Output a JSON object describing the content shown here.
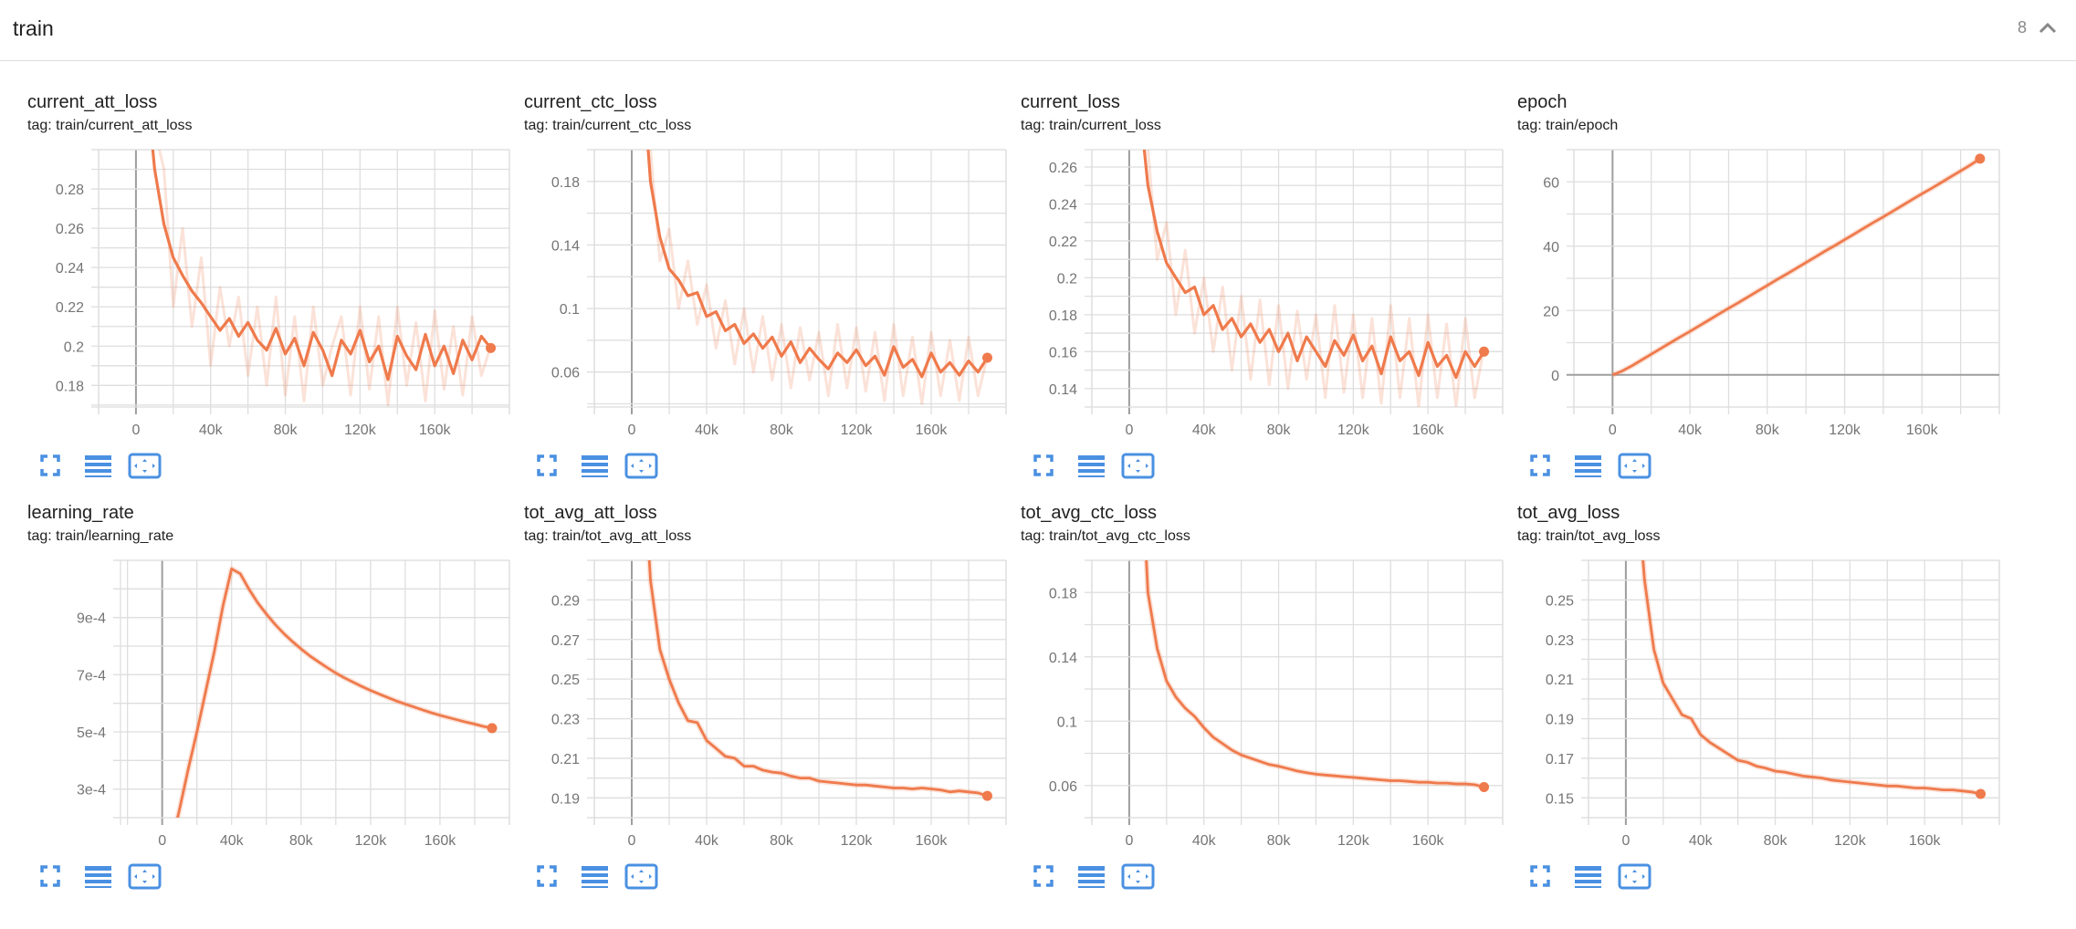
{
  "header": {
    "title": "train",
    "count": "8",
    "collapse_icon": "chevron-up-icon"
  },
  "colors": {
    "series": "#ef7a4c",
    "accent_icons": "#4a90e2",
    "grid": "#dedede",
    "zero_line": "#9e9e9e"
  },
  "card_icons": [
    "fullscreen-icon",
    "data-table-icon",
    "fit-domain-icon"
  ],
  "chart_data": [
    {
      "type": "line",
      "title": "current_att_loss",
      "tag": "tag: train/current_att_loss",
      "xlim": [
        -20000,
        200000
      ],
      "ylim": [
        0.169,
        0.3
      ],
      "grid": true,
      "x_grid_step": 20000,
      "y_grid_step": 0.01,
      "xticks": [
        0,
        40000,
        80000,
        120000,
        160000
      ],
      "xtick_labels": [
        "0",
        "40k",
        "80k",
        "120k",
        "160k"
      ],
      "yticks": [
        0.18,
        0.2,
        0.22,
        0.24,
        0.26,
        0.28
      ],
      "ytick_labels": [
        "0.18",
        "0.2",
        "0.22",
        "0.24",
        "0.26",
        "0.28"
      ],
      "x": [
        0,
        5000,
        10000,
        15000,
        20000,
        25000,
        30000,
        35000,
        40000,
        45000,
        50000,
        55000,
        60000,
        65000,
        70000,
        75000,
        80000,
        85000,
        90000,
        95000,
        100000,
        105000,
        110000,
        115000,
        120000,
        125000,
        130000,
        135000,
        140000,
        145000,
        150000,
        155000,
        160000,
        165000,
        170000,
        175000,
        180000,
        185000,
        190000
      ],
      "smoothed": [
        0.4,
        0.34,
        0.29,
        0.262,
        0.245,
        0.236,
        0.228,
        0.222,
        0.215,
        0.208,
        0.214,
        0.205,
        0.212,
        0.203,
        0.198,
        0.209,
        0.196,
        0.204,
        0.19,
        0.207,
        0.198,
        0.185,
        0.203,
        0.196,
        0.208,
        0.192,
        0.2,
        0.183,
        0.205,
        0.195,
        0.188,
        0.206,
        0.19,
        0.2,
        0.186,
        0.203,
        0.193,
        0.205,
        0.199
      ],
      "raw": [
        0.4,
        0.36,
        0.31,
        0.29,
        0.22,
        0.26,
        0.21,
        0.245,
        0.19,
        0.23,
        0.2,
        0.225,
        0.185,
        0.22,
        0.18,
        0.225,
        0.175,
        0.215,
        0.172,
        0.22,
        0.18,
        0.2,
        0.215,
        0.175,
        0.22,
        0.178,
        0.215,
        0.17,
        0.22,
        0.18,
        0.212,
        0.172,
        0.218,
        0.178,
        0.21,
        0.175,
        0.215,
        0.185,
        0.2
      ]
    },
    {
      "type": "line",
      "title": "current_ctc_loss",
      "tag": "tag: train/current_ctc_loss",
      "xlim": [
        -20000,
        200000
      ],
      "ylim": [
        0.038,
        0.2
      ],
      "grid": true,
      "x_grid_step": 20000,
      "y_grid_step": 0.02,
      "xticks": [
        0,
        40000,
        80000,
        120000,
        160000
      ],
      "xtick_labels": [
        "0",
        "40k",
        "80k",
        "120k",
        "160k"
      ],
      "yticks": [
        0.06,
        0.1,
        0.14,
        0.18
      ],
      "ytick_labels": [
        "0.06",
        "0.1",
        "0.14",
        "0.18"
      ],
      "x": [
        0,
        5000,
        10000,
        15000,
        20000,
        25000,
        30000,
        35000,
        40000,
        45000,
        50000,
        55000,
        60000,
        65000,
        70000,
        75000,
        80000,
        85000,
        90000,
        95000,
        100000,
        105000,
        110000,
        115000,
        120000,
        125000,
        130000,
        135000,
        140000,
        145000,
        150000,
        155000,
        160000,
        165000,
        170000,
        175000,
        180000,
        185000,
        190000
      ],
      "smoothed": [
        0.35,
        0.26,
        0.18,
        0.145,
        0.125,
        0.118,
        0.108,
        0.11,
        0.095,
        0.098,
        0.086,
        0.09,
        0.078,
        0.084,
        0.075,
        0.082,
        0.07,
        0.079,
        0.066,
        0.075,
        0.068,
        0.062,
        0.072,
        0.066,
        0.074,
        0.064,
        0.07,
        0.058,
        0.076,
        0.063,
        0.068,
        0.057,
        0.072,
        0.06,
        0.066,
        0.058,
        0.067,
        0.06,
        0.069
      ],
      "raw": [
        0.35,
        0.28,
        0.2,
        0.13,
        0.15,
        0.1,
        0.13,
        0.09,
        0.115,
        0.075,
        0.105,
        0.065,
        0.1,
        0.06,
        0.095,
        0.055,
        0.09,
        0.05,
        0.088,
        0.055,
        0.085,
        0.045,
        0.09,
        0.05,
        0.088,
        0.048,
        0.085,
        0.042,
        0.09,
        0.045,
        0.082,
        0.04,
        0.085,
        0.045,
        0.08,
        0.042,
        0.082,
        0.045,
        0.07
      ]
    },
    {
      "type": "line",
      "title": "current_loss",
      "tag": "tag: train/current_loss",
      "xlim": [
        -20000,
        200000
      ],
      "ylim": [
        0.13,
        0.2694
      ],
      "grid": true,
      "x_grid_step": 20000,
      "y_grid_step": 0.01,
      "xticks": [
        0,
        40000,
        80000,
        120000,
        160000
      ],
      "xtick_labels": [
        "0",
        "40k",
        "80k",
        "120k",
        "160k"
      ],
      "yticks": [
        0.14,
        0.16,
        0.18,
        0.2,
        0.22,
        0.24,
        0.26
      ],
      "ytick_labels": [
        "0.14",
        "0.16",
        "0.18",
        "0.2",
        "0.22",
        "0.24",
        "0.26"
      ],
      "x": [
        0,
        5000,
        10000,
        15000,
        20000,
        25000,
        30000,
        35000,
        40000,
        45000,
        50000,
        55000,
        60000,
        65000,
        70000,
        75000,
        80000,
        85000,
        90000,
        95000,
        100000,
        105000,
        110000,
        115000,
        120000,
        125000,
        130000,
        135000,
        140000,
        145000,
        150000,
        155000,
        160000,
        165000,
        170000,
        175000,
        180000,
        185000,
        190000
      ],
      "smoothed": [
        0.38,
        0.3,
        0.25,
        0.225,
        0.208,
        0.2,
        0.192,
        0.195,
        0.18,
        0.185,
        0.172,
        0.178,
        0.168,
        0.175,
        0.165,
        0.172,
        0.16,
        0.17,
        0.155,
        0.168,
        0.16,
        0.152,
        0.166,
        0.158,
        0.169,
        0.155,
        0.163,
        0.148,
        0.168,
        0.155,
        0.16,
        0.147,
        0.165,
        0.152,
        0.158,
        0.146,
        0.16,
        0.152,
        0.16
      ],
      "raw": [
        0.38,
        0.31,
        0.27,
        0.21,
        0.23,
        0.18,
        0.215,
        0.17,
        0.2,
        0.16,
        0.195,
        0.15,
        0.19,
        0.145,
        0.188,
        0.142,
        0.185,
        0.14,
        0.182,
        0.145,
        0.18,
        0.135,
        0.185,
        0.138,
        0.18,
        0.135,
        0.178,
        0.132,
        0.185,
        0.135,
        0.178,
        0.13,
        0.18,
        0.135,
        0.175,
        0.13,
        0.178,
        0.135,
        0.162
      ]
    },
    {
      "type": "line",
      "title": "epoch",
      "tag": "tag: train/epoch",
      "xlim": [
        -20000,
        200000
      ],
      "ylim": [
        -10,
        70
      ],
      "grid": true,
      "x_grid_step": 20000,
      "y_grid_step": 10,
      "xticks": [
        0,
        40000,
        80000,
        120000,
        160000
      ],
      "xtick_labels": [
        "0",
        "40k",
        "80k",
        "120k",
        "160k"
      ],
      "yticks": [
        0,
        20,
        40,
        60
      ],
      "ytick_labels": [
        "0",
        "20",
        "40",
        "60"
      ],
      "x": [
        0,
        5000,
        10000,
        15000,
        20000,
        25000,
        30000,
        35000,
        40000,
        45000,
        50000,
        55000,
        60000,
        65000,
        70000,
        75000,
        80000,
        85000,
        90000,
        95000,
        100000,
        105000,
        110000,
        115000,
        120000,
        125000,
        130000,
        135000,
        140000,
        145000,
        150000,
        155000,
        160000,
        165000,
        170000,
        175000,
        180000,
        185000,
        190000
      ],
      "smoothed": [
        0,
        1.2,
        2.8,
        4.6,
        6.4,
        8.2,
        10.0,
        11.8,
        13.5,
        15.3,
        17.1,
        18.9,
        20.7,
        22.4,
        24.2,
        26.0,
        27.8,
        29.6,
        31.3,
        33.1,
        34.9,
        36.7,
        38.5,
        40.2,
        42.0,
        43.8,
        45.6,
        47.4,
        49.1,
        50.9,
        52.7,
        54.5,
        56.3,
        58.0,
        59.8,
        61.6,
        63.4,
        65.2,
        67.2
      ]
    },
    {
      "type": "line",
      "title": "learning_rate",
      "tag": "tag: train/learning_rate",
      "xlim": [
        -24000,
        200000
      ],
      "ylim": [
        0.0002,
        0.0011
      ],
      "grid": true,
      "x_grid_step": 20000,
      "y_grid_step": 0.0001,
      "xticks": [
        0,
        40000,
        80000,
        120000,
        160000
      ],
      "xtick_labels": [
        "0",
        "40k",
        "80k",
        "120k",
        "160k"
      ],
      "yticks": [
        0.0003,
        0.0005,
        0.0007,
        0.0009
      ],
      "ytick_labels": [
        "3e-4",
        "5e-4",
        "7e-4",
        "9e-4"
      ],
      "x": [
        0,
        5000,
        10000,
        15000,
        20000,
        25000,
        30000,
        35000,
        40000,
        45000,
        50000,
        55000,
        60000,
        65000,
        70000,
        75000,
        80000,
        85000,
        90000,
        95000,
        100000,
        105000,
        110000,
        115000,
        120000,
        125000,
        130000,
        135000,
        140000,
        145000,
        150000,
        155000,
        160000,
        165000,
        170000,
        175000,
        180000,
        185000,
        190000
      ],
      "smoothed": [
        0,
        0.0001,
        0.00023,
        0.00037,
        0.0005,
        0.00064,
        0.00078,
        0.00094,
        0.00107,
        0.001053,
        0.000999,
        0.000952,
        0.000912,
        0.000876,
        0.000844,
        0.000816,
        0.00079,
        0.000766,
        0.000745,
        0.000725,
        0.000706,
        0.000689,
        0.000674,
        0.000659,
        0.000645,
        0.000632,
        0.00062,
        0.000608,
        0.000597,
        0.000587,
        0.000577,
        0.000567,
        0.000558,
        0.00055,
        0.000542,
        0.000534,
        0.000527,
        0.000519,
        0.000513
      ]
    },
    {
      "type": "line",
      "title": "tot_avg_att_loss",
      "tag": "tag: train/tot_avg_att_loss",
      "xlim": [
        -20000,
        200000
      ],
      "ylim": [
        0.18,
        0.31
      ],
      "grid": true,
      "x_grid_step": 20000,
      "y_grid_step": 0.01,
      "xticks": [
        0,
        40000,
        80000,
        120000,
        160000
      ],
      "xtick_labels": [
        "0",
        "40k",
        "80k",
        "120k",
        "160k"
      ],
      "yticks": [
        0.19,
        0.21,
        0.23,
        0.25,
        0.27,
        0.29
      ],
      "ytick_labels": [
        "0.19",
        "0.21",
        "0.23",
        "0.25",
        "0.27",
        "0.29"
      ],
      "x": [
        0,
        5000,
        10000,
        15000,
        20000,
        25000,
        30000,
        35000,
        40000,
        45000,
        50000,
        55000,
        60000,
        65000,
        70000,
        75000,
        80000,
        85000,
        90000,
        95000,
        100000,
        105000,
        110000,
        115000,
        120000,
        125000,
        130000,
        135000,
        140000,
        145000,
        150000,
        155000,
        160000,
        165000,
        170000,
        175000,
        180000,
        185000,
        190000
      ],
      "smoothed": [
        0.45,
        0.38,
        0.3,
        0.265,
        0.25,
        0.238,
        0.229,
        0.228,
        0.219,
        0.215,
        0.211,
        0.21,
        0.206,
        0.206,
        0.204,
        0.203,
        0.2025,
        0.201,
        0.2,
        0.2,
        0.1985,
        0.198,
        0.1975,
        0.197,
        0.1965,
        0.1965,
        0.196,
        0.1955,
        0.195,
        0.195,
        0.1945,
        0.195,
        0.1945,
        0.194,
        0.193,
        0.1935,
        0.193,
        0.1925,
        0.191
      ]
    },
    {
      "type": "line",
      "title": "tot_avg_ctc_loss",
      "tag": "tag: train/tot_avg_ctc_loss",
      "xlim": [
        -20000,
        200000
      ],
      "ylim": [
        0.04,
        0.2
      ],
      "grid": true,
      "x_grid_step": 20000,
      "y_grid_step": 0.02,
      "xticks": [
        0,
        40000,
        80000,
        120000,
        160000
      ],
      "xtick_labels": [
        "0",
        "40k",
        "80k",
        "120k",
        "160k"
      ],
      "yticks": [
        0.06,
        0.1,
        0.14,
        0.18
      ],
      "ytick_labels": [
        "0.06",
        "0.1",
        "0.14",
        "0.18"
      ],
      "x": [
        0,
        5000,
        10000,
        15000,
        20000,
        25000,
        30000,
        35000,
        40000,
        45000,
        50000,
        55000,
        60000,
        65000,
        70000,
        75000,
        80000,
        85000,
        90000,
        95000,
        100000,
        105000,
        110000,
        115000,
        120000,
        125000,
        130000,
        135000,
        140000,
        145000,
        150000,
        155000,
        160000,
        165000,
        170000,
        175000,
        180000,
        185000,
        190000
      ],
      "smoothed": [
        0.4,
        0.3,
        0.18,
        0.145,
        0.125,
        0.115,
        0.108,
        0.103,
        0.096,
        0.09,
        0.086,
        0.082,
        0.079,
        0.077,
        0.075,
        0.073,
        0.072,
        0.0705,
        0.069,
        0.068,
        0.067,
        0.0665,
        0.066,
        0.0655,
        0.065,
        0.0645,
        0.064,
        0.0635,
        0.063,
        0.063,
        0.0625,
        0.062,
        0.062,
        0.0615,
        0.0615,
        0.061,
        0.061,
        0.0605,
        0.059
      ]
    },
    {
      "type": "line",
      "title": "tot_avg_loss",
      "tag": "tag: train/tot_avg_loss",
      "xlim": [
        -20000,
        200000
      ],
      "ylim": [
        0.14,
        0.27
      ],
      "grid": true,
      "x_grid_step": 20000,
      "y_grid_step": 0.01,
      "xticks": [
        0,
        40000,
        80000,
        120000,
        160000
      ],
      "xtick_labels": [
        "0",
        "40k",
        "80k",
        "120k",
        "160k"
      ],
      "yticks": [
        0.15,
        0.17,
        0.19,
        0.21,
        0.23,
        0.25
      ],
      "ytick_labels": [
        "0.15",
        "0.17",
        "0.19",
        "0.21",
        "0.23",
        "0.25"
      ],
      "x": [
        0,
        5000,
        10000,
        15000,
        20000,
        25000,
        30000,
        35000,
        40000,
        45000,
        50000,
        55000,
        60000,
        65000,
        70000,
        75000,
        80000,
        85000,
        90000,
        95000,
        100000,
        105000,
        110000,
        115000,
        120000,
        125000,
        130000,
        135000,
        140000,
        145000,
        150000,
        155000,
        160000,
        165000,
        170000,
        175000,
        180000,
        185000,
        190000
      ],
      "smoothed": [
        0.4,
        0.32,
        0.26,
        0.225,
        0.208,
        0.2,
        0.192,
        0.19,
        0.182,
        0.178,
        0.175,
        0.172,
        0.169,
        0.168,
        0.166,
        0.165,
        0.1635,
        0.163,
        0.162,
        0.161,
        0.1605,
        0.16,
        0.159,
        0.1585,
        0.158,
        0.1575,
        0.157,
        0.1565,
        0.156,
        0.156,
        0.1555,
        0.155,
        0.155,
        0.1545,
        0.154,
        0.154,
        0.1535,
        0.153,
        0.152
      ]
    }
  ]
}
